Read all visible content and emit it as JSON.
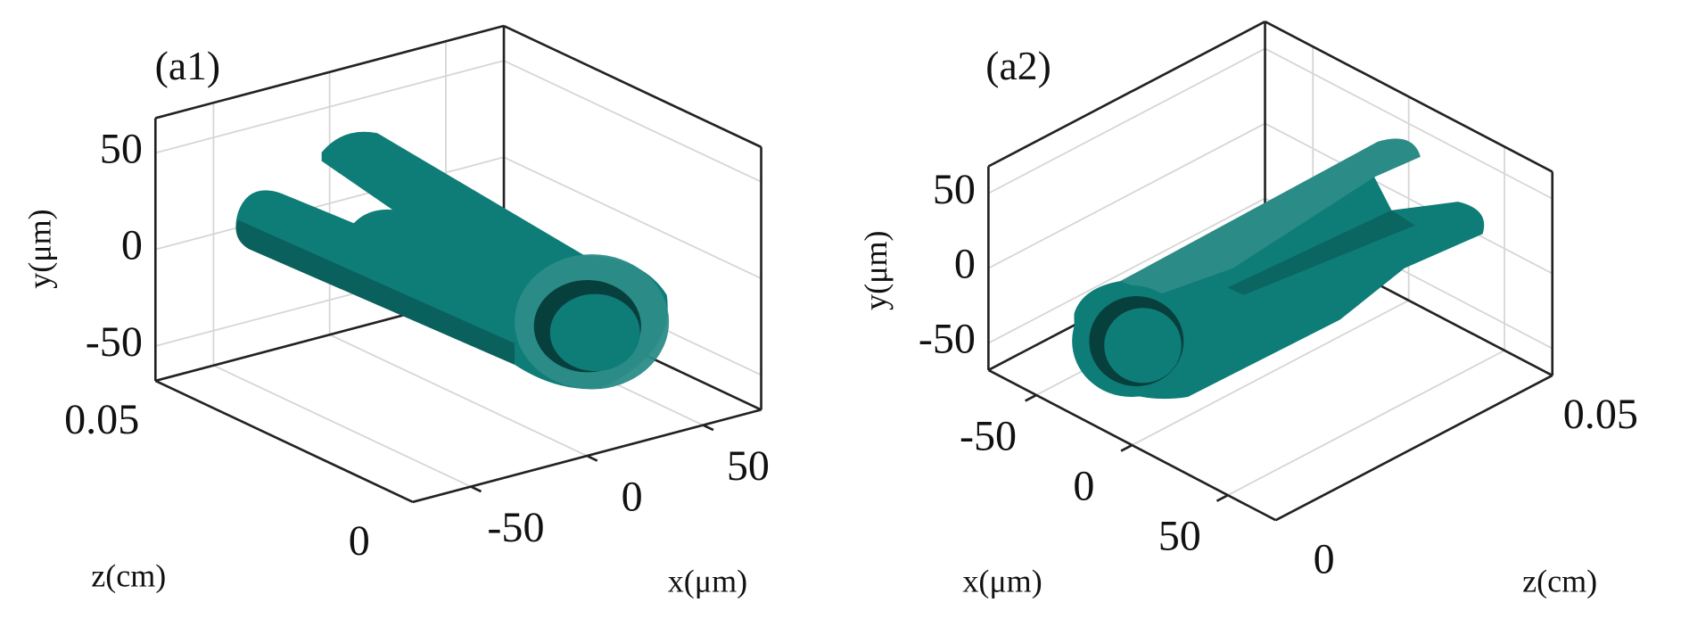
{
  "chart_data": [
    {
      "type": "surface3d",
      "title": "(a1)",
      "xlabel": "x(μm)",
      "ylabel": "y(μm)",
      "zlabel": "z(cm)",
      "xlim": [
        -75,
        75
      ],
      "ylim": [
        -68,
        68
      ],
      "zlim": [
        0,
        0.05
      ],
      "xticks": [
        -50,
        0,
        50
      ],
      "yticks": [
        -50,
        0,
        50
      ],
      "zticks": [
        0,
        0.05
      ],
      "grid": true,
      "color": "#0e7c77"
    },
    {
      "type": "surface3d",
      "title": "(a2)",
      "xlabel": "x(μm)",
      "ylabel": "y(μm)",
      "zlabel": "z(cm)",
      "xlim": [
        -75,
        75
      ],
      "ylim": [
        -68,
        68
      ],
      "zlim": [
        0,
        0.05
      ],
      "xticks": [
        -50,
        0,
        50
      ],
      "yticks": [
        -50,
        0,
        50
      ],
      "zticks": [
        0,
        0.05
      ],
      "grid": true,
      "color": "#0e7c77"
    }
  ]
}
